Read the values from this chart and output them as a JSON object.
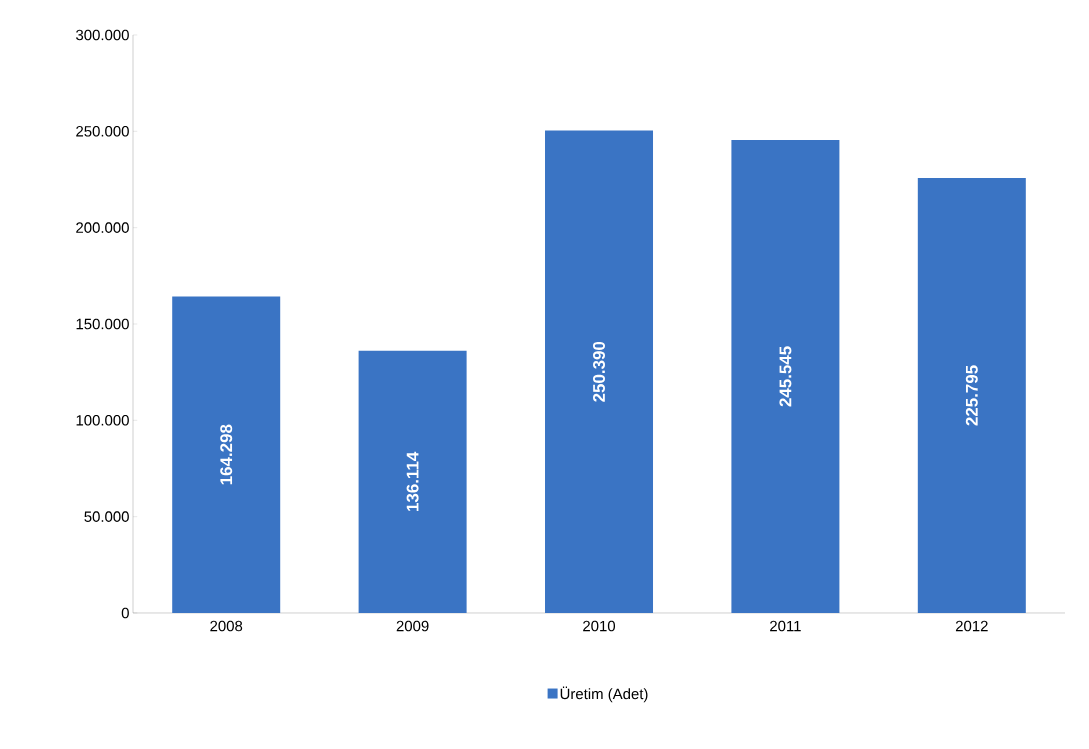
{
  "chart_data": {
    "type": "bar",
    "categories": [
      "2008",
      "2009",
      "2010",
      "2011",
      "2012"
    ],
    "series": [
      {
        "name": "Üretim (Adet)",
        "color": "#3a74c4",
        "values": [
          164298,
          136114,
          250390,
          245545,
          225795
        ],
        "value_labels": [
          "164.298",
          "136.114",
          "250.390",
          "245.545",
          "225.795"
        ]
      }
    ],
    "ylim": [
      0,
      300000
    ],
    "yticks": [
      0,
      {
        "value": 50000,
        "label": "50.000"
      },
      {
        "value": 100000,
        "label": "100.000"
      },
      {
        "value": 150000,
        "label": "150.000"
      },
      {
        "value": 200000,
        "label": "200.000"
      },
      {
        "value": 250000,
        "label": "250.000"
      },
      {
        "value": 300000,
        "label": "300.000"
      }
    ],
    "grid": false,
    "legend": "bottom"
  }
}
